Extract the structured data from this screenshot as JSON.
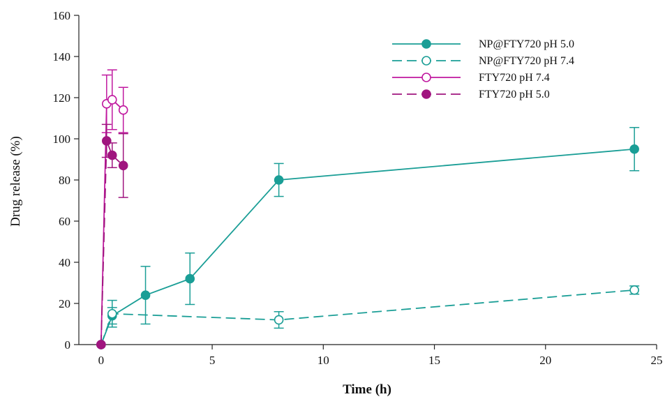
{
  "chart_data": {
    "type": "line",
    "xlabel": "Time (h)",
    "ylabel": "Drug release (%)",
    "xlim": [
      -1,
      25
    ],
    "ylim": [
      0,
      160
    ],
    "xticks": [
      0,
      5,
      10,
      15,
      20,
      25
    ],
    "yticks": [
      0,
      20,
      40,
      60,
      80,
      100,
      120,
      140,
      160
    ],
    "grid": false,
    "legend_position": "top-right",
    "series": [
      {
        "name": "NP@FTY720  pH 5.0",
        "color": "#1a9e96",
        "marker": "filled-circle",
        "line": "solid",
        "x": [
          0,
          0.5,
          2,
          4,
          8,
          24
        ],
        "y": [
          0,
          14,
          24,
          32,
          80,
          95
        ],
        "err": [
          0,
          4,
          14,
          12.5,
          8,
          10.5
        ]
      },
      {
        "name": "NP@FTY720  pH 7.4",
        "color": "#1a9e96",
        "marker": "open-circle",
        "line": "dashed",
        "x": [
          0,
          0.5,
          8,
          24
        ],
        "y": [
          0,
          15,
          12,
          26.5
        ],
        "err": [
          0,
          6.5,
          4,
          2
        ]
      },
      {
        "name": "FTY720  pH 7.4",
        "color": "#c0189f",
        "marker": "open-circle",
        "line": "solid",
        "x": [
          0,
          0.25,
          0.5,
          1
        ],
        "y": [
          0,
          117,
          119,
          114
        ],
        "err": [
          0,
          14,
          14.5,
          11
        ]
      },
      {
        "name": "FTY720 pH 5.0",
        "color": "#a0157f",
        "marker": "filled-circle",
        "line": "dashed",
        "x": [
          0,
          0.25,
          0.5,
          1
        ],
        "y": [
          0,
          99,
          92,
          87
        ],
        "err": [
          0,
          8,
          6,
          15.5
        ]
      }
    ]
  }
}
